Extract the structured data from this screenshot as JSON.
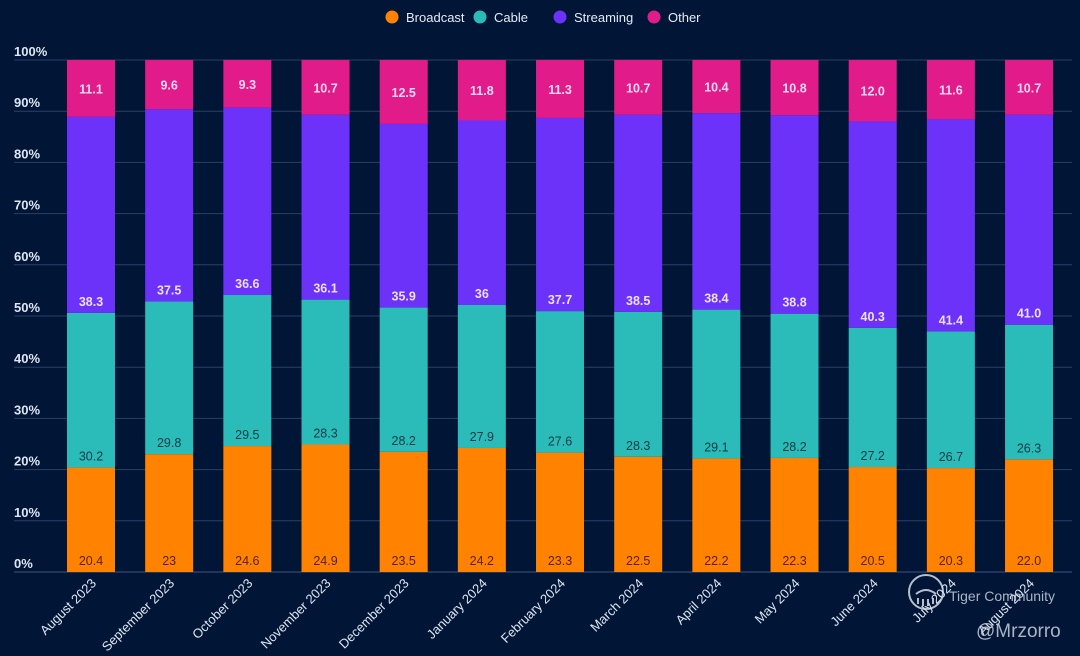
{
  "chart_data": {
    "type": "bar",
    "stacked": true,
    "normalized": true,
    "title": "",
    "xlabel": "",
    "ylabel": "",
    "ylim": [
      0,
      100
    ],
    "yticks": [
      "0%",
      "10%",
      "20%",
      "30%",
      "40%",
      "50%",
      "60%",
      "70%",
      "80%",
      "90%",
      "100%"
    ],
    "grid": true,
    "legend_position": "top-center",
    "categories": [
      "August 2023",
      "September 2023",
      "October 2023",
      "November 2023",
      "December 2023",
      "January 2024",
      "February 2024",
      "March 2024",
      "April 2024",
      "May 2024",
      "June 2024",
      "July 2024",
      "August 2024"
    ],
    "series": [
      {
        "name": "Broadcast",
        "color": "#ff8200",
        "label_color": "#5a2203",
        "values": [
          20.4,
          23,
          24.6,
          24.9,
          23.5,
          24.2,
          23.3,
          22.5,
          22.2,
          22.3,
          20.5,
          20.3,
          22.0
        ],
        "labels": [
          "20.4",
          "23",
          "24.6",
          "24.9",
          "23.5",
          "24.2",
          "23.3",
          "22.5",
          "22.2",
          "22.3",
          "20.5",
          "20.3",
          "22.0"
        ]
      },
      {
        "name": "Cable",
        "color": "#2bbbb8",
        "label_color": "#0f3d47",
        "values": [
          30.2,
          29.8,
          29.5,
          28.3,
          28.2,
          27.9,
          27.6,
          28.3,
          29.1,
          28.2,
          27.2,
          26.7,
          26.3
        ],
        "labels": [
          "30.2",
          "29.8",
          "29.5",
          "28.3",
          "28.2",
          "27.9",
          "27.6",
          "28.3",
          "29.1",
          "28.2",
          "27.2",
          "26.7",
          "26.3"
        ]
      },
      {
        "name": "Streaming",
        "color": "#6c32fa",
        "label_color": "#ece1ff",
        "values": [
          38.3,
          37.5,
          36.6,
          36.1,
          35.9,
          36,
          37.7,
          38.5,
          38.4,
          38.8,
          40.3,
          41.4,
          41.0
        ],
        "labels": [
          "38.3",
          "37.5",
          "36.6",
          "36.1",
          "35.9",
          "36",
          "37.7",
          "38.5",
          "38.4",
          "38.8",
          "40.3",
          "41.4",
          "41.0"
        ]
      },
      {
        "name": "Other",
        "color": "#e21b8a",
        "label_color": "#f7d9ef",
        "values": [
          11.1,
          9.6,
          9.3,
          10.7,
          12.5,
          11.8,
          11.3,
          10.7,
          10.4,
          10.8,
          12.0,
          11.6,
          10.7
        ],
        "labels": [
          "11.1",
          "9.6",
          "9.3",
          "10.7",
          "12.5",
          "11.8",
          "11.3",
          "10.7",
          "10.4",
          "10.8",
          "12.0",
          "11.6",
          "10.7"
        ]
      }
    ]
  },
  "colors": {
    "background": "#011537",
    "gridline": "#2a4063",
    "axis_text": "#dfe6f2"
  },
  "watermark": {
    "brand": "Tiger Community",
    "handle": "@Mrzorro",
    "icon": "tiger-logo-icon"
  }
}
